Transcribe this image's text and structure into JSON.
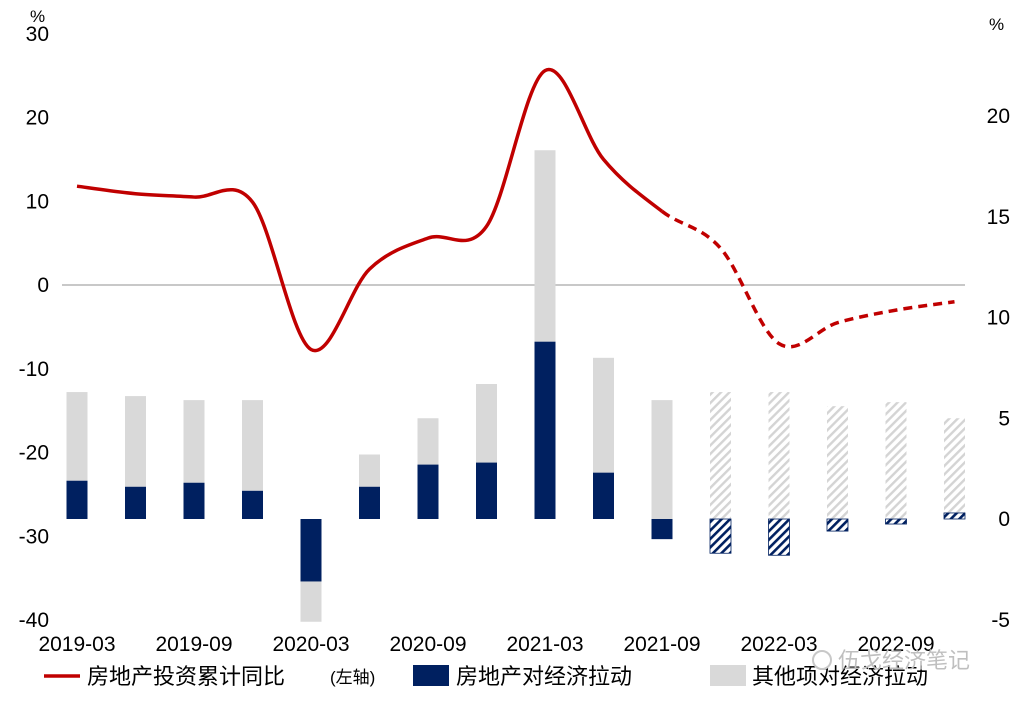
{
  "chart_data": {
    "type": "bar",
    "x_tick_labels": [
      "2019-03",
      "2019-09",
      "2020-03",
      "2020-09",
      "2021-03",
      "2021-09",
      "2022-03",
      "2022-09"
    ],
    "left_axis": {
      "unit": "%",
      "ylim": [
        -40,
        30
      ],
      "ticks": [
        "30",
        "20",
        "10",
        "0",
        "-10",
        "-20",
        "-30",
        "-40"
      ]
    },
    "right_axis": {
      "unit": "%",
      "ylim": [
        -5,
        23
      ],
      "ticks": [
        "20",
        "15",
        "10",
        "5",
        "0",
        "-5"
      ]
    },
    "periods": [
      "2019-03",
      "2019-06",
      "2019-09",
      "2019-12",
      "2020-03",
      "2020-06",
      "2020-09",
      "2020-12",
      "2021-03",
      "2021-06",
      "2021-09",
      "2021-12",
      "2022-03",
      "2022-06",
      "2022-09",
      "2022-12"
    ],
    "projected_from_index": 11,
    "series": [
      {
        "name": "房地产投资累计同比",
        "axis_note": "(左轴)",
        "kind": "line",
        "axis": "left",
        "color": "#c00000",
        "x": [
          "2019-03",
          "2019-06",
          "2019-09",
          "2019-12",
          "2020-03",
          "2020-06",
          "2020-09",
          "2020-12",
          "2021-03",
          "2021-06",
          "2021-09",
          "2021-12",
          "2022-03",
          "2022-06",
          "2022-09",
          "2022-12"
        ],
        "values": [
          11.8,
          10.9,
          10.5,
          9.9,
          -7.7,
          1.9,
          5.6,
          7.0,
          25.6,
          15.0,
          8.8,
          4.4,
          -7.0,
          -4.5,
          -3.0,
          -2.0
        ],
        "dashed_from_index": 10
      },
      {
        "name": "房地产对经济拉动",
        "kind": "bar",
        "axis": "right",
        "color": "#002060",
        "values": [
          1.9,
          1.6,
          1.8,
          1.4,
          -3.1,
          1.6,
          2.7,
          2.8,
          8.8,
          2.3,
          -1.0,
          -1.7,
          -1.8,
          -0.6,
          -0.25,
          0.3
        ]
      },
      {
        "name": "其他项对经济拉动",
        "kind": "stacked_bar",
        "axis": "right",
        "color": "#d9d9d9",
        "values": [
          4.4,
          4.5,
          4.1,
          4.5,
          -2.0,
          1.6,
          2.3,
          3.9,
          9.5,
          5.7,
          5.9,
          6.3,
          6.3,
          5.6,
          5.8,
          4.7
        ]
      }
    ],
    "legend": {
      "position": "bottom"
    },
    "watermark": "伍戈经济笔记"
  }
}
